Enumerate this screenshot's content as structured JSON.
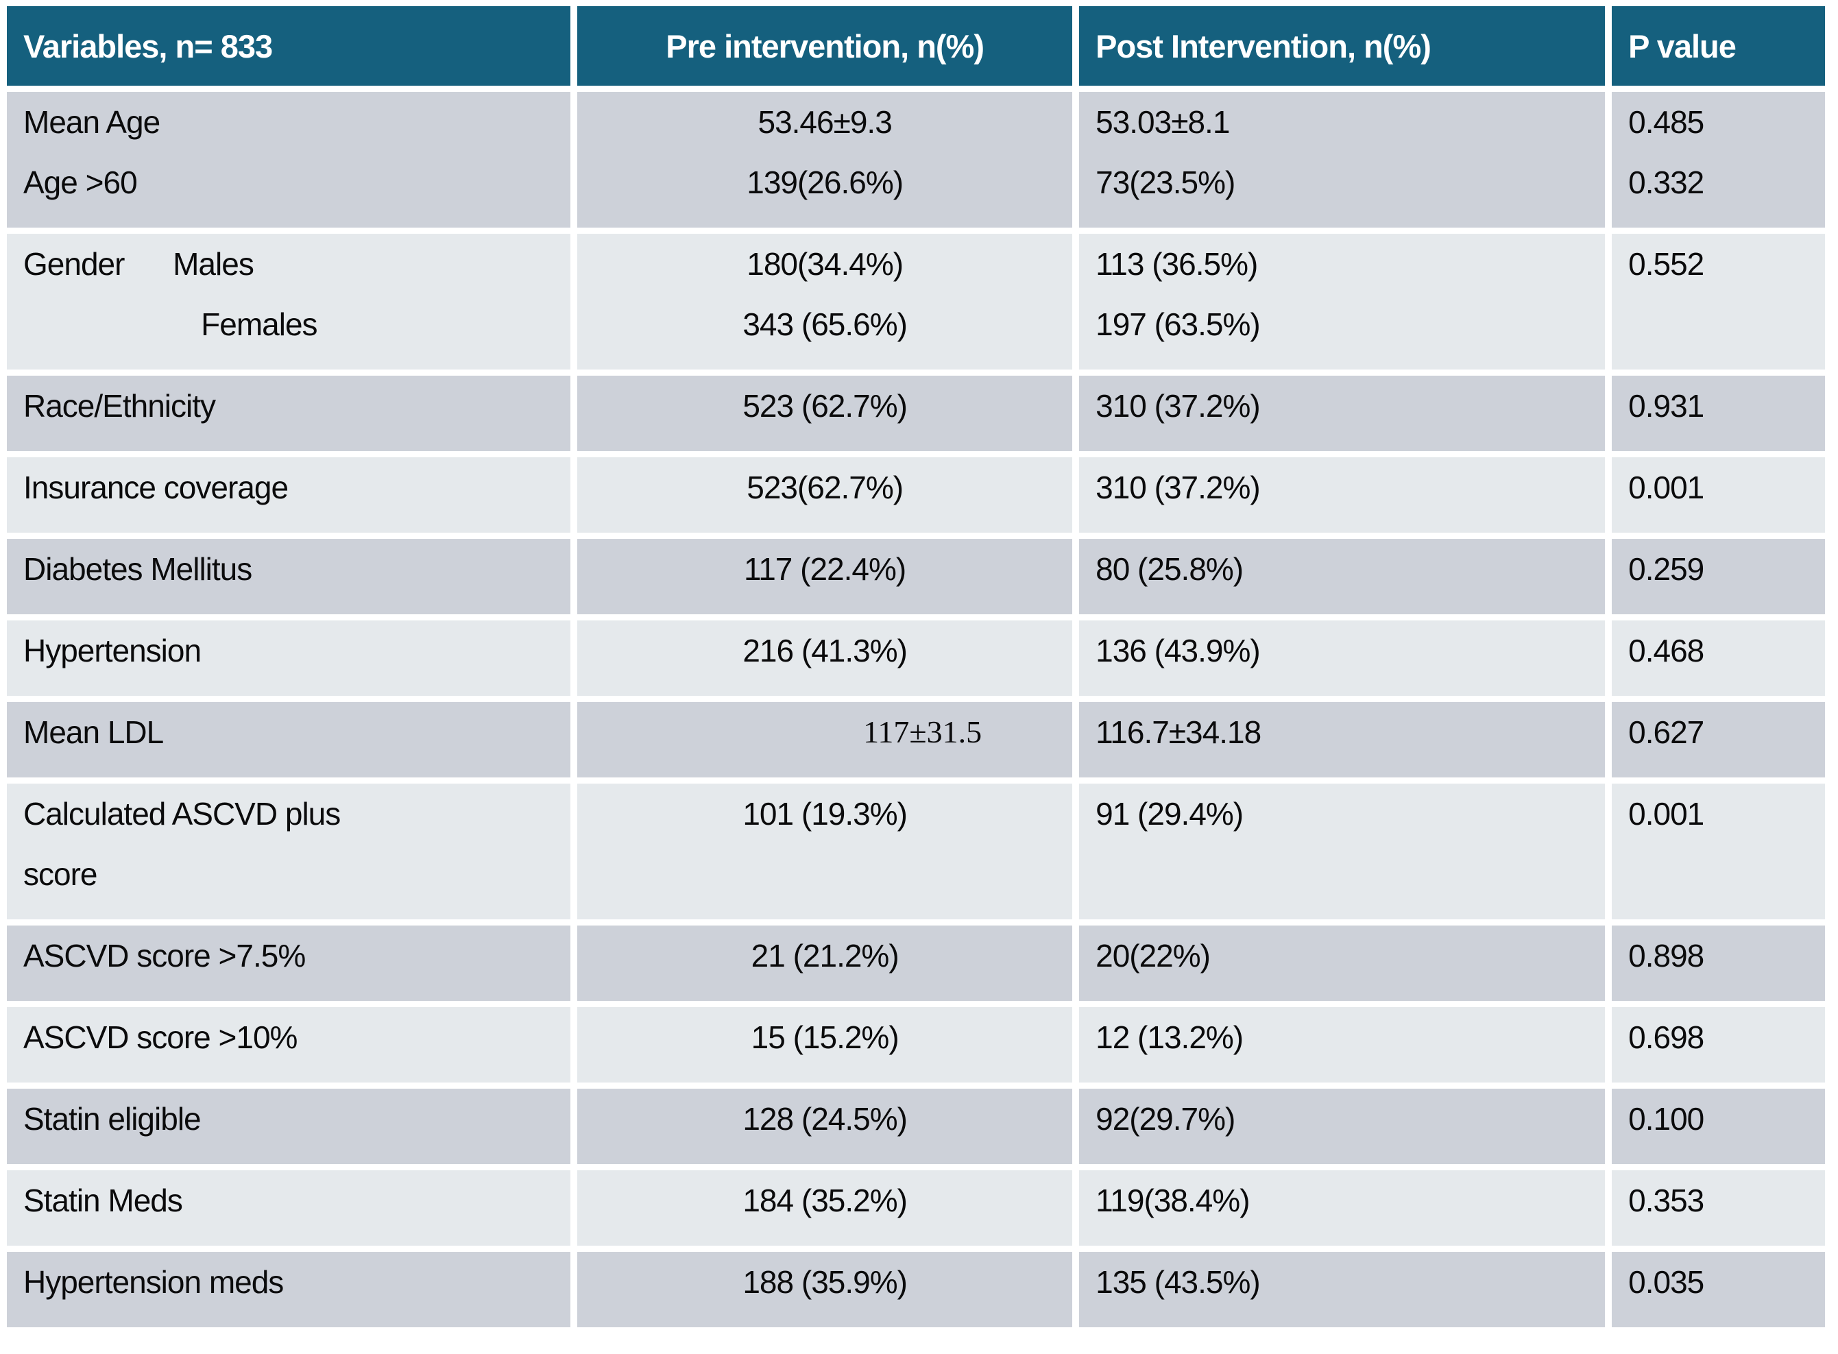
{
  "chart_data": {
    "type": "table",
    "title": "Pre vs Post Intervention study results table",
    "columns": [
      "Variables, n= 833",
      "Pre intervention, n(%)",
      "Post Intervention, n(%)",
      "P value"
    ],
    "rows": [
      {
        "variable": [
          "Mean Age",
          "Age >60"
        ],
        "pre": [
          "53.46±9.3",
          "139(26.6%)"
        ],
        "post": [
          "53.03±8.1",
          "73(23.5%)"
        ],
        "p": [
          "0.485",
          "0.332"
        ]
      },
      {
        "variable": [
          "Gender      Males",
          "                      Females"
        ],
        "pre": [
          "180(34.4%)",
          "343 (65.6%)"
        ],
        "post": [
          "113 (36.5%)",
          "197 (63.5%)"
        ],
        "p": [
          "0.552",
          ""
        ]
      },
      {
        "variable": [
          "Race/Ethnicity"
        ],
        "pre": [
          "523 (62.7%)"
        ],
        "post": [
          "310 (37.2%)"
        ],
        "p": [
          "0.931"
        ]
      },
      {
        "variable": [
          "Insurance coverage"
        ],
        "pre": [
          "523(62.7%)"
        ],
        "post": [
          "310 (37.2%)"
        ],
        "p": [
          "0.001"
        ]
      },
      {
        "variable": [
          "Diabetes Mellitus"
        ],
        "pre": [
          "117 (22.4%)"
        ],
        "post": [
          "80 (25.8%)"
        ],
        "p": [
          "0.259"
        ]
      },
      {
        "variable": [
          "Hypertension"
        ],
        "pre": [
          "216 (41.3%)"
        ],
        "post": [
          "136 (43.9%)"
        ],
        "p": [
          "0.468"
        ]
      },
      {
        "variable": [
          "Mean LDL"
        ],
        "pre": [
          "117±31.5"
        ],
        "pre_align": "right",
        "pre_serif": true,
        "post": [
          "116.7±34.18"
        ],
        "p": [
          "0.627"
        ]
      },
      {
        "variable": [
          "Calculated ASCVD plus",
          "score"
        ],
        "pre": [
          "101 (19.3%)"
        ],
        "post": [
          "91 (29.4%)"
        ],
        "p": [
          "0.001"
        ]
      },
      {
        "variable": [
          "ASCVD score >7.5%"
        ],
        "pre": [
          "21 (21.2%)"
        ],
        "post": [
          "20(22%)"
        ],
        "p": [
          "0.898"
        ]
      },
      {
        "variable": [
          "ASCVD score >10%"
        ],
        "pre": [
          "15 (15.2%)"
        ],
        "post": [
          "12 (13.2%)"
        ],
        "p": [
          "0.698"
        ]
      },
      {
        "variable": [
          "Statin eligible"
        ],
        "pre": [
          "128 (24.5%)"
        ],
        "post": [
          "92(29.7%)"
        ],
        "p": [
          "0.100"
        ]
      },
      {
        "variable": [
          "Statin Meds"
        ],
        "pre": [
          "184 (35.2%)"
        ],
        "post": [
          "119(38.4%)"
        ],
        "p": [
          "0.353"
        ]
      },
      {
        "variable": [
          "Hypertension meds"
        ],
        "pre": [
          "188 (35.9%)"
        ],
        "post": [
          "135 (43.5%)"
        ],
        "p": [
          "0.035"
        ]
      }
    ],
    "layout_hints": {
      "banding": "first data row dark, alternating",
      "grid": "white gutters between all cells"
    },
    "colors": {
      "header_bg": "#15607E",
      "header_text": "#FFFFFF",
      "row_dark": "#CDD1D9",
      "row_light": "#E5E9EC",
      "text": "#0B0B0C",
      "page_bg": "#FFFFFF"
    }
  }
}
